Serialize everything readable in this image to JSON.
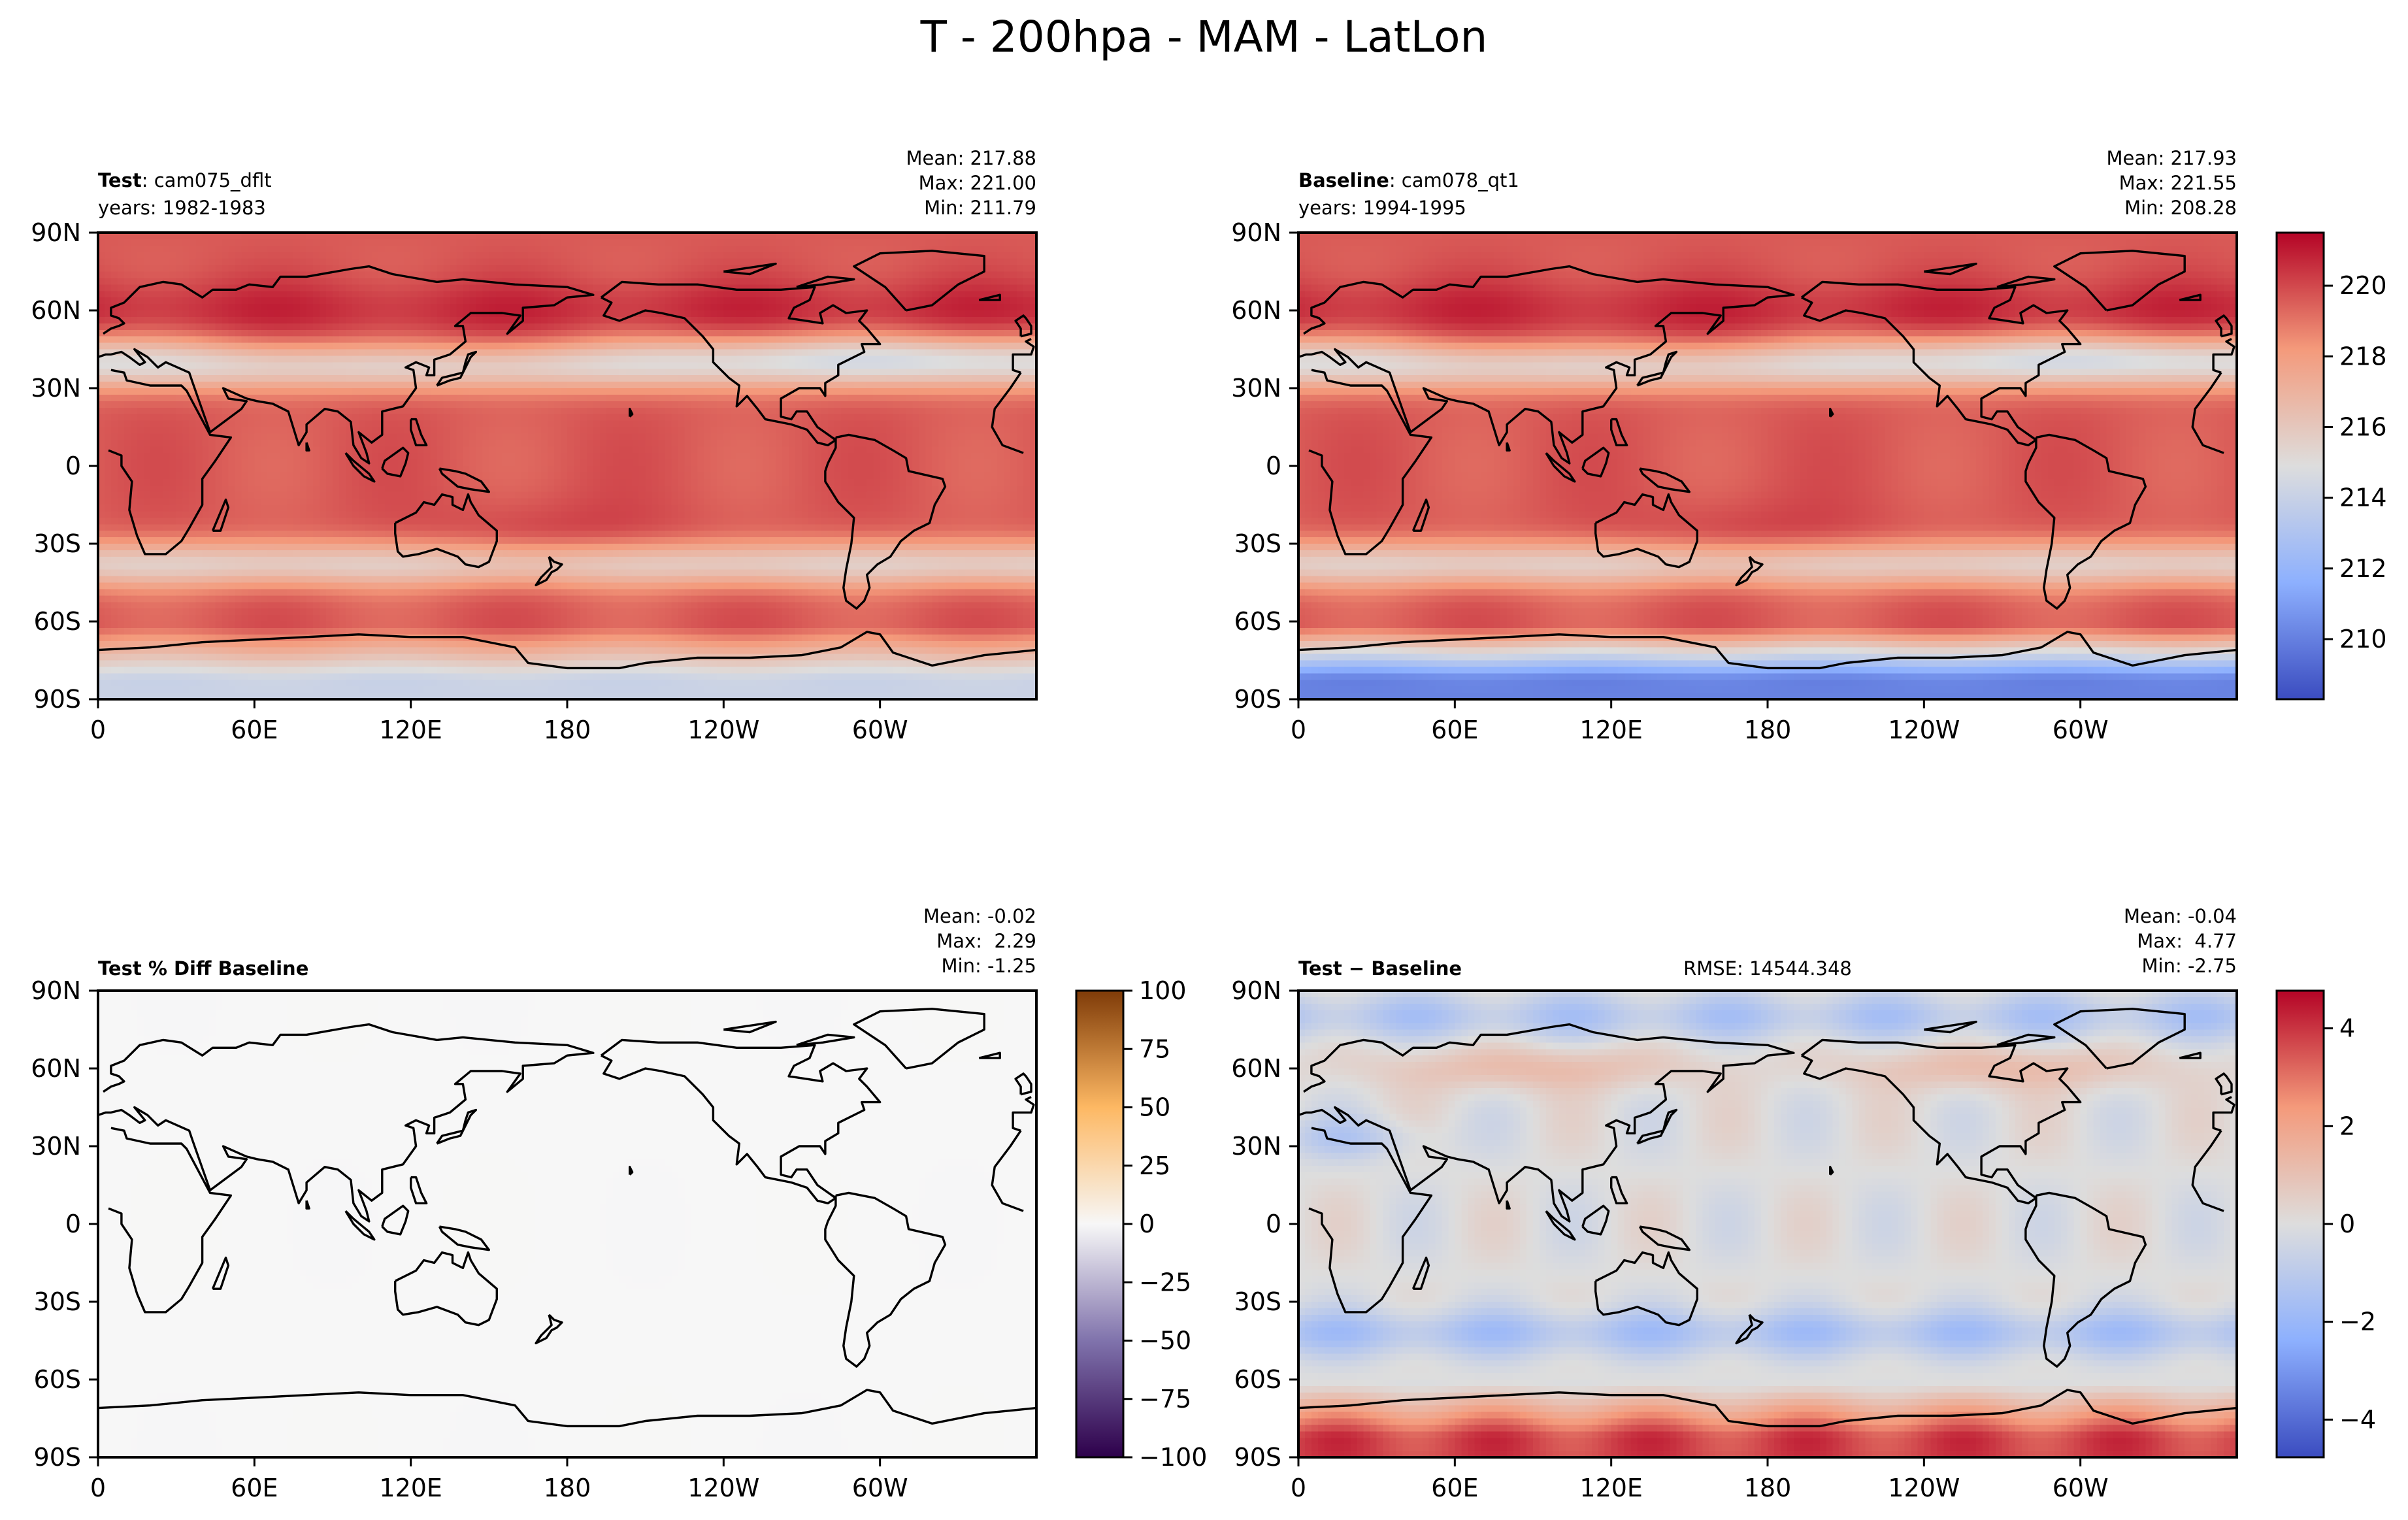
{
  "title": "T - 200hpa - MAM - LatLon",
  "colors": {
    "coolwarm_low": "#3b4cc0",
    "coolwarm_mid": "#dddddd",
    "coolwarm_high": "#b40426",
    "puor_low": "#2d004b",
    "puor_mid": "#f7f7f7",
    "puor_high": "#7f3b08"
  },
  "chart_data": [
    {
      "type": "heatmap",
      "panel": "test",
      "label_bold": "Test",
      "label_rest": ": cam075_dflt",
      "years": "years: 1982-1983",
      "stats": [
        "Mean: 217.88",
        "Max: 221.00",
        "Min: 211.79"
      ],
      "xticks": [
        "0",
        "60E",
        "120E",
        "180",
        "120W",
        "60W"
      ],
      "yticks": [
        "90N",
        "60N",
        "30N",
        "0",
        "30S",
        "60S",
        "90S"
      ],
      "field": "temperature",
      "vmin": 208.3,
      "vmax": 221.5,
      "colormap": "coolwarm"
    },
    {
      "type": "heatmap",
      "panel": "baseline",
      "label_bold": "Baseline",
      "label_rest": ": cam078_qt1",
      "years": "years: 1994-1995",
      "stats": [
        "Mean: 217.93",
        "Max: 221.55",
        "Min: 208.28"
      ],
      "xticks": [
        "0",
        "60E",
        "120E",
        "180",
        "120W",
        "60W"
      ],
      "yticks": [
        "90N",
        "60N",
        "30N",
        "0",
        "30S",
        "60S",
        "90S"
      ],
      "field": "temperature",
      "vmin": 208.3,
      "vmax": 221.5,
      "colormap": "coolwarm",
      "colorbar_ticks": [
        "220",
        "218",
        "216",
        "214",
        "212",
        "210"
      ],
      "colorbar_values": [
        220,
        218,
        216,
        214,
        212,
        210
      ]
    },
    {
      "type": "heatmap",
      "panel": "pct_diff",
      "label_bold": "Test % Diff Baseline",
      "stats": [
        "Mean: -0.02",
        "Max:  2.29",
        "Min: -1.25"
      ],
      "xticks": [
        "0",
        "60E",
        "120E",
        "180",
        "120W",
        "60W"
      ],
      "yticks": [
        "90N",
        "60N",
        "30N",
        "0",
        "30S",
        "60S",
        "90S"
      ],
      "field": "percent_difference",
      "vmin": -100,
      "vmax": 100,
      "colormap": "PuOr_r",
      "colorbar_ticks": [
        "100",
        "75",
        "50",
        "25",
        "0",
        "−25",
        "−50",
        "−75",
        "−100"
      ],
      "colorbar_values": [
        100,
        75,
        50,
        25,
        0,
        -25,
        -50,
        -75,
        -100
      ]
    },
    {
      "type": "heatmap",
      "panel": "difference",
      "label_bold": "Test − Baseline",
      "rmse": "RMSE: 14544.348",
      "stats": [
        "Mean: -0.04",
        "Max:  4.77",
        "Min: -2.75"
      ],
      "xticks": [
        "0",
        "60E",
        "120E",
        "180",
        "120W",
        "60W"
      ],
      "yticks": [
        "90N",
        "60N",
        "30N",
        "0",
        "30S",
        "60S",
        "90S"
      ],
      "field": "difference",
      "vmin": -4.77,
      "vmax": 4.77,
      "colormap": "coolwarm",
      "colorbar_ticks": [
        "4",
        "2",
        "0",
        "−2",
        "−4"
      ],
      "colorbar_values": [
        4,
        2,
        0,
        -2,
        -4
      ]
    }
  ]
}
